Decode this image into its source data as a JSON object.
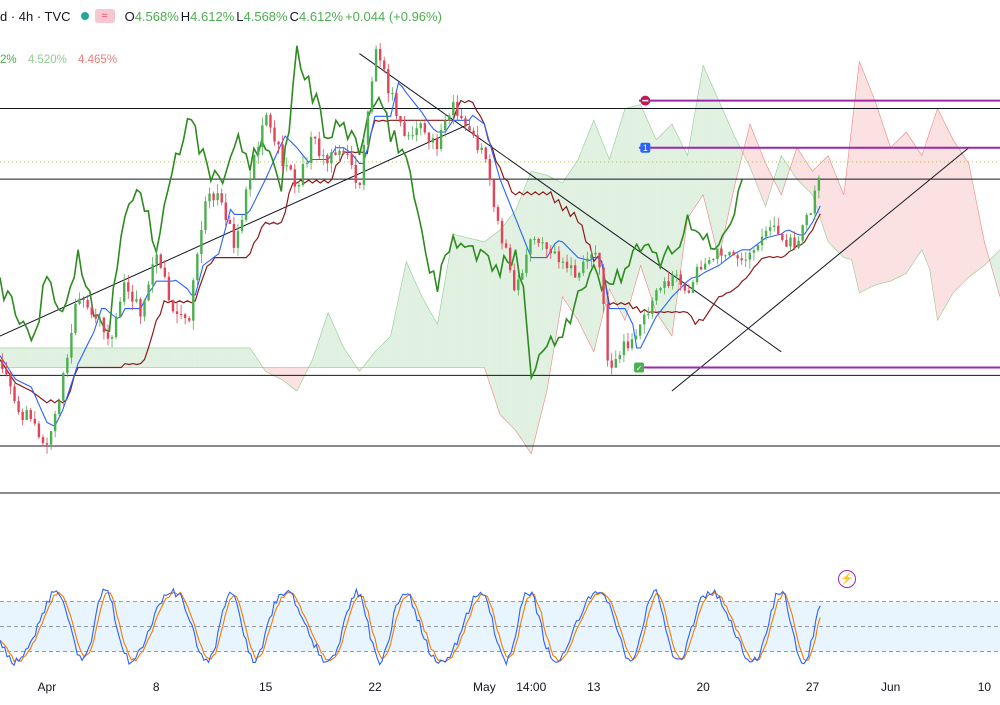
{
  "header": {
    "symbol_interval": "d · 4h · TVC",
    "compare_badge": "≈",
    "ohlc": {
      "o": "4.568%",
      "h": "4.612%",
      "l": "4.568%",
      "c": "4.612%",
      "change": "+0.044 (+0.96%)"
    }
  },
  "ichimoku_legend": {
    "v1": "2%",
    "v2": "4.520%",
    "v3": "4.465%"
  },
  "colors": {
    "bull": "#4caf50",
    "bear": "#e0455a",
    "conversion": "#2962ff",
    "base": "#8b1a1a",
    "lagging": "#2e8b1f",
    "cloud_green": "#c8e6c9",
    "cloud_red": "#f8c9c9",
    "purple": "#9c27b0",
    "stoch_k": "#2962ff",
    "stoch_d": "#f57c00"
  },
  "icons": {
    "flash": "lightning-circle-icon",
    "marker_1": "1",
    "marker_check": "✓"
  },
  "chart_data": {
    "type": "candlestick",
    "x_ticks": [
      "Apr",
      "8",
      "15",
      "22",
      "May",
      "14:00",
      "13",
      "20",
      "27",
      "Jun",
      "10"
    ],
    "x_tick_pos": [
      -3,
      4,
      11,
      18,
      25,
      28,
      32,
      39,
      46,
      51,
      57
    ],
    "x_range": [
      -6,
      58
    ],
    "y_range": [
      4.12,
      4.78
    ],
    "horizontal_levels": [
      4.68,
      4.59,
      4.34,
      4.25,
      4.19
    ],
    "purple_levels": [
      4.69,
      4.63,
      4.35
    ],
    "current_price": 4.612,
    "price_path": [
      [
        -6,
        4.36
      ],
      [
        -5,
        4.3
      ],
      [
        -4,
        4.28
      ],
      [
        -3,
        4.25
      ],
      [
        -2,
        4.33
      ],
      [
        -1,
        4.45
      ],
      [
        0,
        4.42
      ],
      [
        1,
        4.38
      ],
      [
        2,
        4.46
      ],
      [
        3,
        4.42
      ],
      [
        4,
        4.49
      ],
      [
        5,
        4.43
      ],
      [
        6,
        4.4
      ],
      [
        7,
        4.55
      ],
      [
        8,
        4.58
      ],
      [
        9,
        4.5
      ],
      [
        10,
        4.59
      ],
      [
        11,
        4.67
      ],
      [
        12,
        4.62
      ],
      [
        13,
        4.58
      ],
      [
        14,
        4.64
      ],
      [
        15,
        4.61
      ],
      [
        16,
        4.63
      ],
      [
        17,
        4.58
      ],
      [
        18,
        4.75
      ],
      [
        19,
        4.7
      ],
      [
        20,
        4.64
      ],
      [
        21,
        4.66
      ],
      [
        22,
        4.63
      ],
      [
        23,
        4.69
      ],
      [
        24,
        4.65
      ],
      [
        25,
        4.62
      ],
      [
        26,
        4.52
      ],
      [
        27,
        4.45
      ],
      [
        28,
        4.52
      ],
      [
        29,
        4.5
      ],
      [
        30,
        4.49
      ],
      [
        31,
        4.47
      ],
      [
        32,
        4.5
      ],
      [
        32.5,
        4.46
      ],
      [
        33,
        4.34
      ],
      [
        34,
        4.38
      ],
      [
        35,
        4.4
      ],
      [
        36,
        4.44
      ],
      [
        37,
        4.47
      ],
      [
        38,
        4.45
      ],
      [
        39,
        4.48
      ],
      [
        40,
        4.5
      ],
      [
        41,
        4.49
      ],
      [
        42,
        4.5
      ],
      [
        43,
        4.53
      ],
      [
        44,
        4.52
      ],
      [
        45,
        4.5
      ],
      [
        46,
        4.56
      ],
      [
        46.6,
        4.61
      ]
    ],
    "trendlines": [
      {
        "from": [
          -6,
          4.39
        ],
        "to": [
          24,
          4.66
        ]
      },
      {
        "from": [
          17,
          4.75
        ],
        "to": [
          44,
          4.37
        ]
      },
      {
        "from": [
          37,
          4.32
        ],
        "to": [
          56,
          4.63
        ]
      }
    ],
    "stochastic": {
      "bands": [
        20,
        80
      ],
      "y_range": [
        0,
        100
      ]
    }
  }
}
